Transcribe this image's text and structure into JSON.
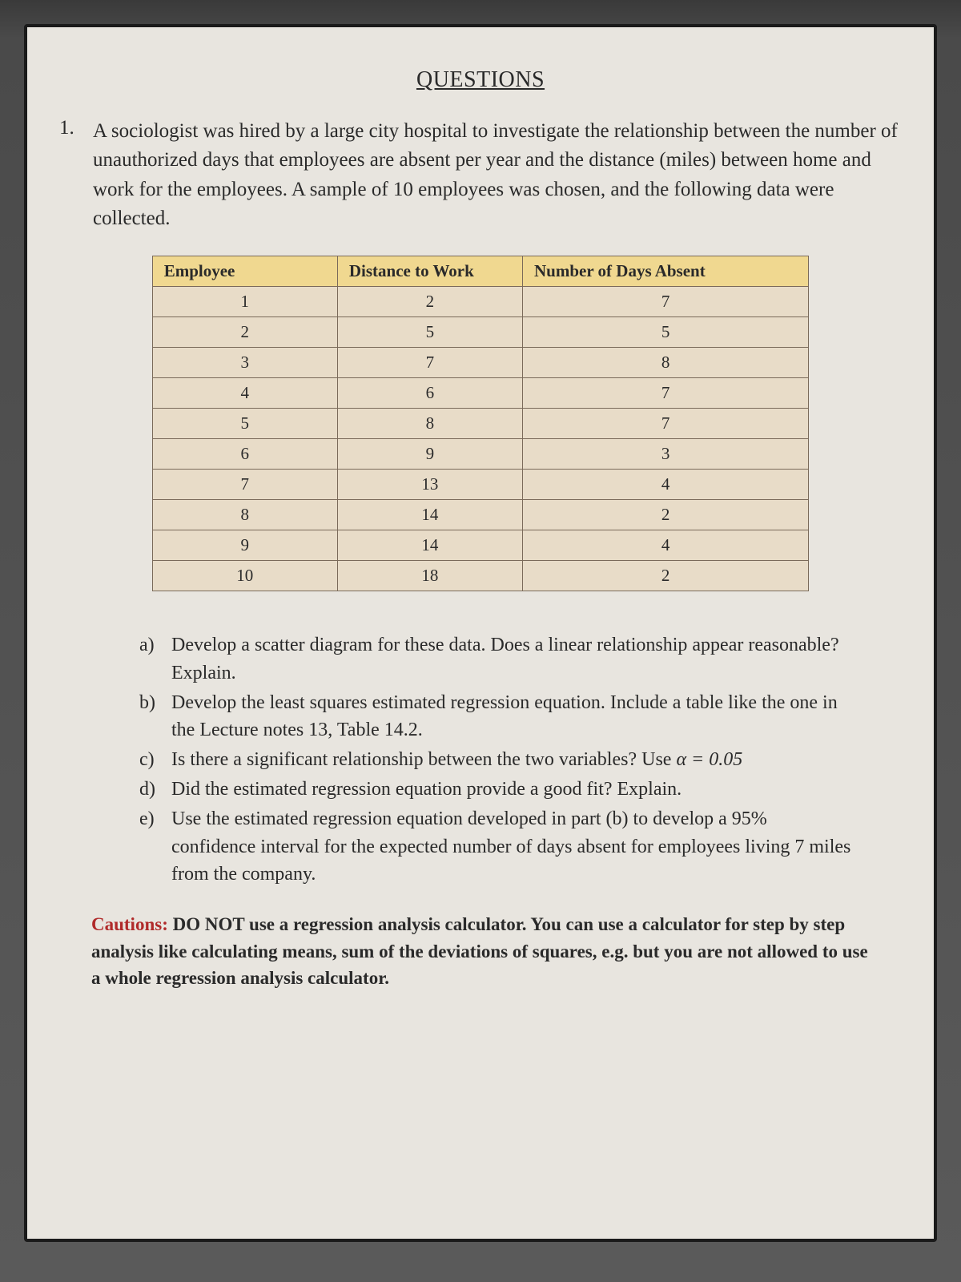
{
  "title": "QUESTIONS",
  "question": {
    "number": "1.",
    "text": "A sociologist was hired by a large city hospital to investigate the relationship between the number of unauthorized days that employees are absent per year and the distance (miles) between home and work for the employees. A sample of 10 employees was chosen, and the following data were collected."
  },
  "table": {
    "columns": [
      "Employee",
      "Distance to Work",
      "Number of Days Absent"
    ],
    "header_bg": "#f0d890",
    "cell_bg": "#e8dcc8",
    "border_color": "#7a6a5a",
    "rows": [
      [
        "1",
        "2",
        "7"
      ],
      [
        "2",
        "5",
        "5"
      ],
      [
        "3",
        "7",
        "8"
      ],
      [
        "4",
        "6",
        "7"
      ],
      [
        "5",
        "8",
        "7"
      ],
      [
        "6",
        "9",
        "3"
      ],
      [
        "7",
        "13",
        "4"
      ],
      [
        "8",
        "14",
        "2"
      ],
      [
        "9",
        "14",
        "4"
      ],
      [
        "10",
        "18",
        "2"
      ]
    ]
  },
  "subquestions": [
    {
      "label": "a)",
      "text": "Develop a scatter diagram for these data. Does a linear relationship appear reasonable? Explain."
    },
    {
      "label": "b)",
      "text": "Develop the least squares estimated regression equation. Include a table like the one in the Lecture notes 13, Table 14.2."
    },
    {
      "label": "c)",
      "text_pre": "Is there a significant relationship between the two variables? Use ",
      "alpha": "α = 0.05"
    },
    {
      "label": "d)",
      "text": "Did the estimated regression equation provide a good fit? Explain."
    },
    {
      "label": "e)",
      "text": "Use the estimated regression equation developed in part (b) to develop a 95% confidence interval for the expected number of days absent for employees living 7 miles from the company."
    }
  ],
  "caution": {
    "label": "Cautions:",
    "text": " DO NOT use a regression analysis calculator. You can use a calculator for step by step analysis like calculating means, sum of the deviations of squares, e.g. but you are not allowed to use a whole regression analysis calculator."
  },
  "colors": {
    "page_bg": "#e8e5df",
    "text_color": "#2a2a2a",
    "caution_color": "#b02a2a"
  }
}
